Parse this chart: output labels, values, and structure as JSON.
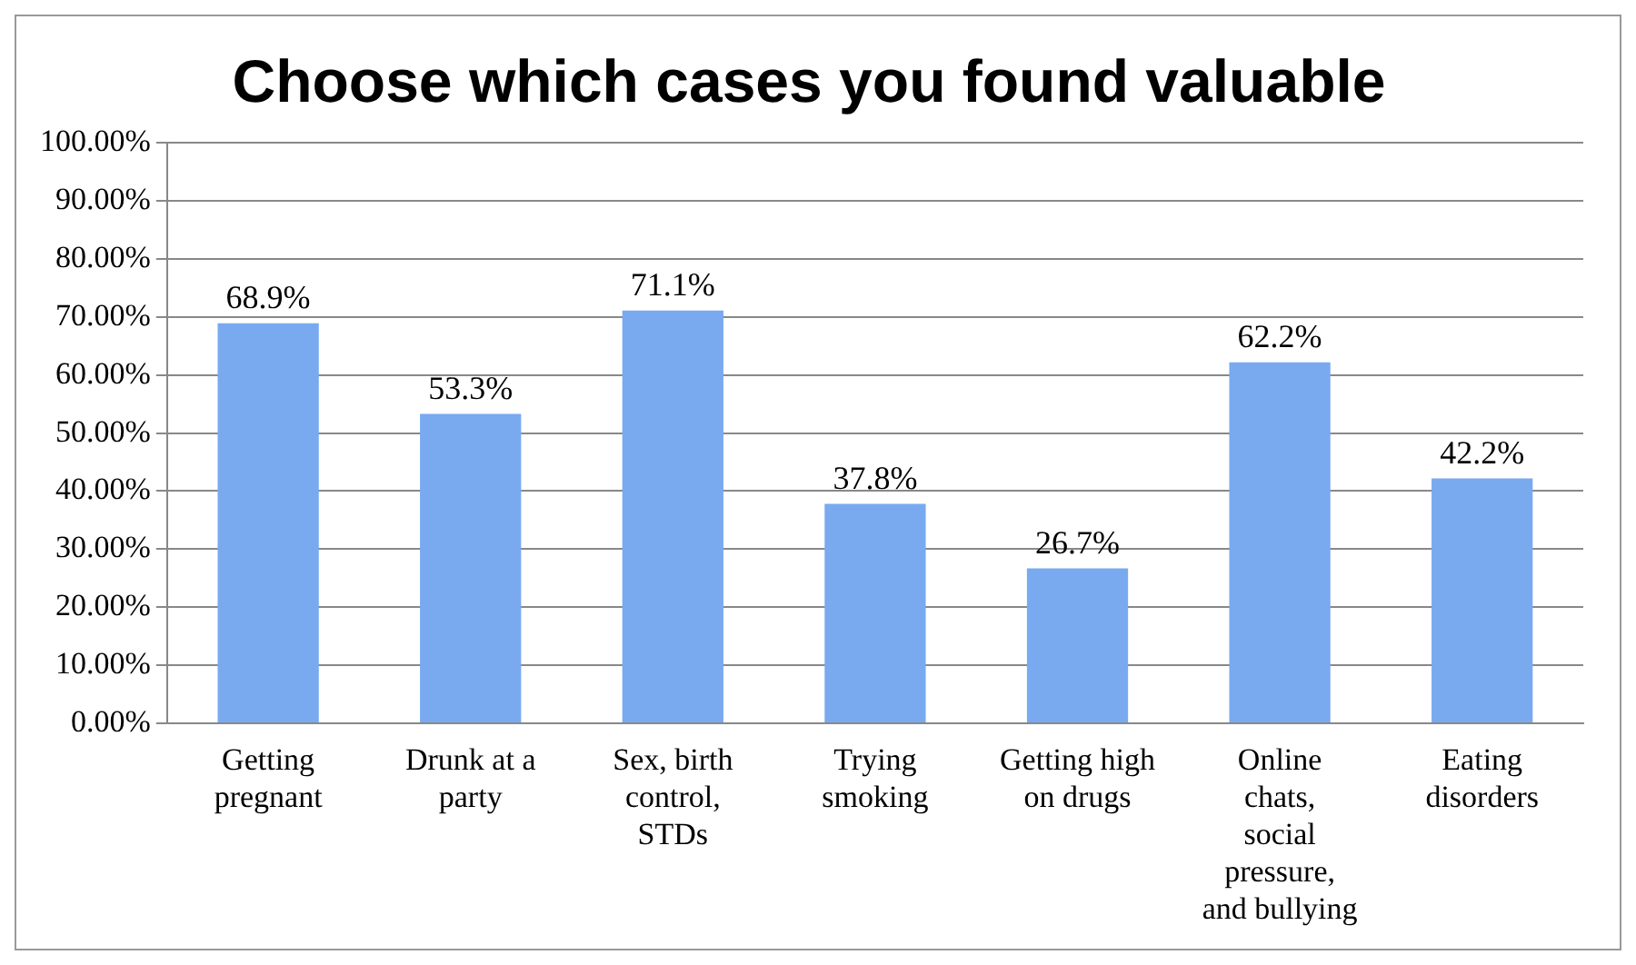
{
  "chart_data": {
    "type": "bar",
    "title": "Choose which cases you found valuable",
    "categories": [
      "Getting pregnant",
      "Drunk at a party",
      "Sex, birth control, STDs",
      "Trying smoking",
      "Getting high on drugs",
      "Online chats, social pressure, and bullying",
      "Eating disorders"
    ],
    "values": [
      68.9,
      53.3,
      71.1,
      37.8,
      26.7,
      62.2,
      42.2
    ],
    "value_labels": [
      "68.9%",
      "53.3%",
      "71.1%",
      "37.8%",
      "26.7%",
      "62.2%",
      "42.2%"
    ],
    "color": "#79aaf0",
    "ylim": [
      0,
      100
    ],
    "yticks": [
      {
        "value": 0,
        "label": "0.00%"
      },
      {
        "value": 10,
        "label": "10.00%"
      },
      {
        "value": 20,
        "label": "20.00%"
      },
      {
        "value": 30,
        "label": "30.00%"
      },
      {
        "value": 40,
        "label": "40.00%"
      },
      {
        "value": 50,
        "label": "50.00%"
      },
      {
        "value": 60,
        "label": "60.00%"
      },
      {
        "value": 70,
        "label": "70.00%"
      },
      {
        "value": 80,
        "label": "80.00%"
      },
      {
        "value": 90,
        "label": "90.00%"
      },
      {
        "value": 100,
        "label": "100.00%"
      }
    ],
    "grid": "y",
    "legend": false
  }
}
